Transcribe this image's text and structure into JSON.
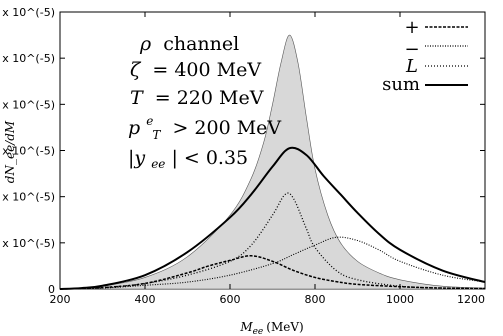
{
  "chart_data": {
    "type": "line",
    "xlabel_main": "M",
    "xlabel_sub": "ee",
    "xlabel_unit": "(MeV)",
    "ylabel": "dN_ee/dM",
    "xlim": [
      200,
      1200
    ],
    "ylim": [
      0,
      6e-05
    ],
    "x_ticks": [
      "200",
      "400",
      "600",
      "800",
      "1000",
      "1200"
    ],
    "x_tick_values": [
      200,
      400,
      600,
      800,
      1000,
      1200
    ],
    "y_ticks": [
      "0",
      "1 x 10^(-5)",
      "2 x 10^(-5)",
      "3 x 10^(-5)",
      "4 x 10^(-5)",
      "5 x 10^(-5)",
      "6 x 10^(-5)"
    ],
    "y_tick_values": [
      0,
      1e-05,
      2e-05,
      3e-05,
      4e-05,
      5e-05,
      6e-05
    ],
    "annotations": {
      "line1_symbol": "ρ",
      "line1_text": "channel",
      "line2_symbol": "ζ",
      "line2_text": "= 400 MeV",
      "line3_symbol": "T",
      "line3_text": "= 220 MeV",
      "line4_symbol": "p",
      "line4_sup": "e",
      "line4_sub": "T",
      "line4_text": "> 200 MeV",
      "line5_text": "|y",
      "line5_sub": "ee",
      "line5_end": "| < 0.35"
    },
    "legend": [
      "+",
      "−",
      "L",
      "sum"
    ],
    "legend_position": "top-right",
    "grid": false,
    "series": [
      {
        "name": "+",
        "style": "dashed",
        "x": [
          200,
          300,
          400,
          500,
          550,
          600,
          650,
          700,
          750,
          800,
          850,
          900,
          1000,
          1100,
          1200
        ],
        "y": [
          0,
          3e-07,
          1.2e-06,
          3.5e-06,
          5e-06,
          6.2e-06,
          7.2e-06,
          6e-06,
          4e-06,
          2.5e-06,
          1.6e-06,
          1e-06,
          5e-07,
          2e-07,
          1e-07
        ]
      },
      {
        "name": "−",
        "style": "dotted",
        "x": [
          200,
          300,
          400,
          500,
          600,
          700,
          750,
          800,
          850,
          900,
          950,
          1000,
          1100,
          1200
        ],
        "y": [
          0,
          2e-07,
          8e-07,
          1.5e-06,
          3e-06,
          5.5e-06,
          7.5e-06,
          9.5e-06,
          1.12e-05,
          1.05e-05,
          8.5e-06,
          6e-06,
          3e-06,
          1.5e-06
        ]
      },
      {
        "name": "L",
        "style": "dash-dot",
        "x": [
          200,
          300,
          400,
          500,
          600,
          650,
          700,
          730,
          750,
          780,
          800,
          850,
          900,
          1000,
          1100,
          1200
        ],
        "y": [
          0,
          3e-07,
          1.2e-06,
          3e-06,
          6e-06,
          9.5e-06,
          1.6e-05,
          2.05e-05,
          1.95e-05,
          1.3e-05,
          9e-06,
          4e-06,
          2e-06,
          6e-07,
          2e-07,
          1e-07
        ]
      },
      {
        "name": "sum",
        "style": "solid",
        "x": [
          200,
          250,
          300,
          400,
          500,
          600,
          650,
          700,
          740,
          780,
          820,
          860,
          900,
          950,
          1000,
          1100,
          1200
        ],
        "y": [
          0,
          2e-07,
          7e-07,
          3e-06,
          8e-06,
          1.55e-05,
          2.05e-05,
          2.65e-05,
          3.05e-05,
          2.9e-05,
          2.45e-05,
          2.05e-05,
          1.65e-05,
          1.2e-05,
          8.5e-06,
          4e-06,
          1.5e-06
        ]
      },
      {
        "name": "",
        "style": "filled",
        "x": [
          200,
          250,
          300,
          400,
          500,
          600,
          650,
          680,
          700,
          720,
          740,
          760,
          780,
          800,
          830,
          860,
          900,
          950,
          1000,
          1100,
          1200
        ],
        "y": [
          0,
          2e-07,
          6e-07,
          2.5e-06,
          7e-06,
          1.6e-05,
          2.4e-05,
          3.2e-05,
          4e-05,
          4.9e-05,
          5.5e-05,
          4.9e-05,
          3.7e-05,
          2.6e-05,
          1.6e-05,
          1e-05,
          6e-06,
          3.5e-06,
          2e-06,
          6e-07,
          2e-07
        ]
      }
    ]
  }
}
